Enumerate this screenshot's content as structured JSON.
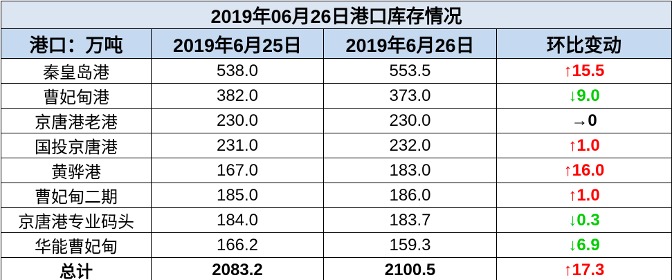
{
  "title": "2019年06月26日港口库存情况",
  "table": {
    "header": [
      "港口：万吨",
      "2019年6月25日",
      "2019年6月26日",
      "环比变动"
    ],
    "rows": [
      [
        "秦皇岛港",
        "538.0",
        "553.5",
        "↑15.5"
      ],
      [
        "曹妃甸港",
        "382.0",
        "373.0",
        "↓9.0"
      ],
      [
        "京唐港老港",
        "230.0",
        "230.0",
        "→0"
      ],
      [
        "国投京唐港",
        "231.0",
        "232.0",
        "↑1.0"
      ],
      [
        "黄骅港",
        "167.0",
        "183.0",
        "↑16.0"
      ],
      [
        "曹妃甸二期",
        "185.0",
        "186.0",
        "↑1.0"
      ],
      [
        "京唐港专业码头",
        "184.0",
        "183.7",
        "↓0.3"
      ],
      [
        "华能曹妃甸",
        "166.2",
        "159.3",
        "↓6.9"
      ],
      [
        "总计",
        "2083.2",
        "2100.5",
        "↑17.3"
      ]
    ]
  },
  "change_colors": [
    "#ff0000",
    "#00cc00",
    "#000000",
    "#ff0000",
    "#ff0000",
    "#ff0000",
    "#00cc00",
    "#00cc00",
    "#ff0000"
  ]
}
